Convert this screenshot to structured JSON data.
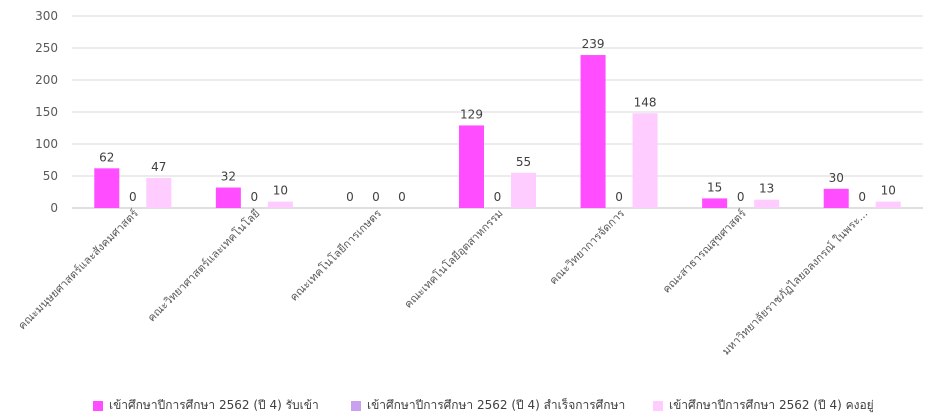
{
  "chart_data": {
    "type": "bar",
    "categories": [
      "คณะมนุษยศาสตร์และสังคมศาสตร์",
      "คณะวิทยาศาสตร์และเทคโนโลยี",
      "คณะเทคโนโลยีการเกษตร",
      "คณะเทคโนโลยีอุตสาหกรรม",
      "คณะวิทยาการจัดการ",
      "คณะสาธารณสุขศาสตร์",
      "มหาวิทยาลัยราชภัฏไลยอลงกรณ์ ในพระ..."
    ],
    "series": [
      {
        "name": "เข้าศึกษาปีการศึกษา 2562 (ปี 4) รับเข้า",
        "color": "#ff4dff",
        "values": [
          62,
          32,
          0,
          129,
          239,
          15,
          30
        ]
      },
      {
        "name": "เข้าศึกษาปีการศึกษา 2562 (ปี 4) สำเร็จการศึกษา",
        "color": "#c9a0f0",
        "values": [
          0,
          0,
          0,
          0,
          0,
          0,
          0
        ]
      },
      {
        "name": "เข้าศึกษาปีการศึกษา 2562 (ปี 4) คงอยู่",
        "color": "#ffccff",
        "values": [
          47,
          10,
          0,
          55,
          148,
          13,
          10
        ]
      }
    ],
    "yticks": [
      0,
      50,
      100,
      150,
      200,
      250,
      300
    ],
    "ylim": [
      0,
      300
    ],
    "grid": true,
    "legend_position": "bottom"
  }
}
